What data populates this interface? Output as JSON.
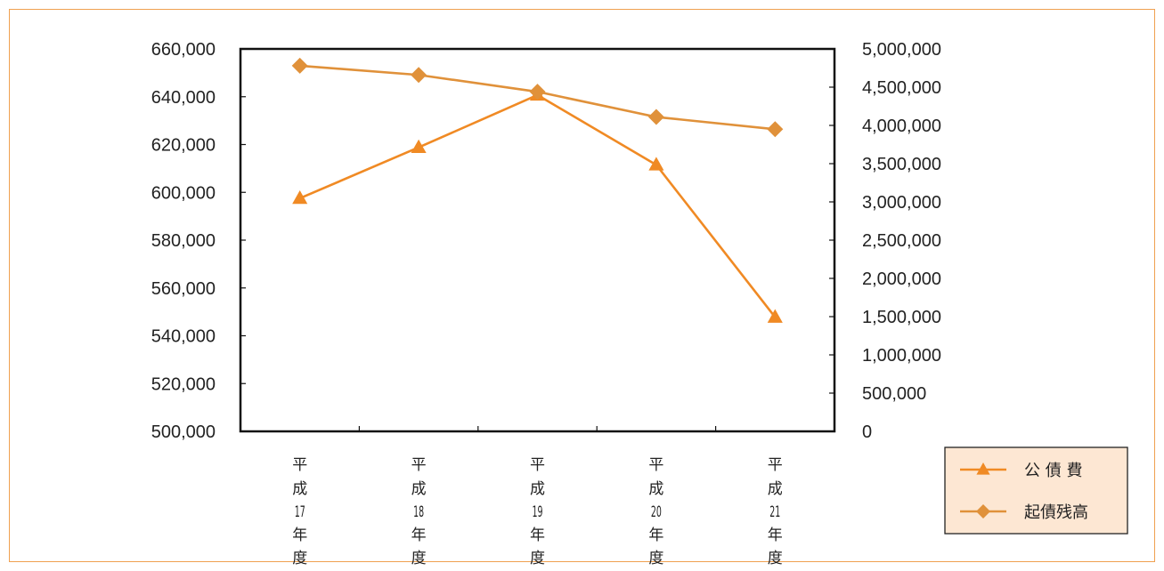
{
  "chart_data": {
    "type": "line",
    "categories": [
      "平成17年度",
      "平成18年度",
      "平成19年度",
      "平成20年度",
      "平成21年度"
    ],
    "category_chars": [
      [
        "平",
        "成",
        "17",
        "年",
        "度"
      ],
      [
        "平",
        "成",
        "18",
        "年",
        "度"
      ],
      [
        "平",
        "成",
        "19",
        "年",
        "度"
      ],
      [
        "平",
        "成",
        "20",
        "年",
        "度"
      ],
      [
        "平",
        "成",
        "21",
        "年",
        "度"
      ]
    ],
    "y_left": {
      "min": 500000,
      "max": 660000,
      "step": 20000,
      "ticks": [
        "500,000",
        "520,000",
        "540,000",
        "560,000",
        "580,000",
        "600,000",
        "620,000",
        "640,000",
        "660,000"
      ]
    },
    "y_right": {
      "min": 0,
      "max": 5000000,
      "step": 500000,
      "ticks": [
        "0",
        "500,000",
        "1,000,000",
        "1,500,000",
        "2,000,000",
        "2,500,000",
        "3,000,000",
        "3,500,000",
        "4,000,000",
        "4,500,000",
        "5,000,000"
      ]
    },
    "series": [
      {
        "name": "公 債 費",
        "axis": "left",
        "marker": "triangle",
        "color": "#f08a24",
        "values": [
          597500,
          618800,
          640700,
          611500,
          547800
        ]
      },
      {
        "name": "起債残高",
        "axis": "right",
        "marker": "diamond",
        "color": "#e0913a",
        "values": [
          4780000,
          4660000,
          4440000,
          4110000,
          3950000
        ]
      }
    ],
    "legend_position": "bottom-right",
    "grid": false
  }
}
